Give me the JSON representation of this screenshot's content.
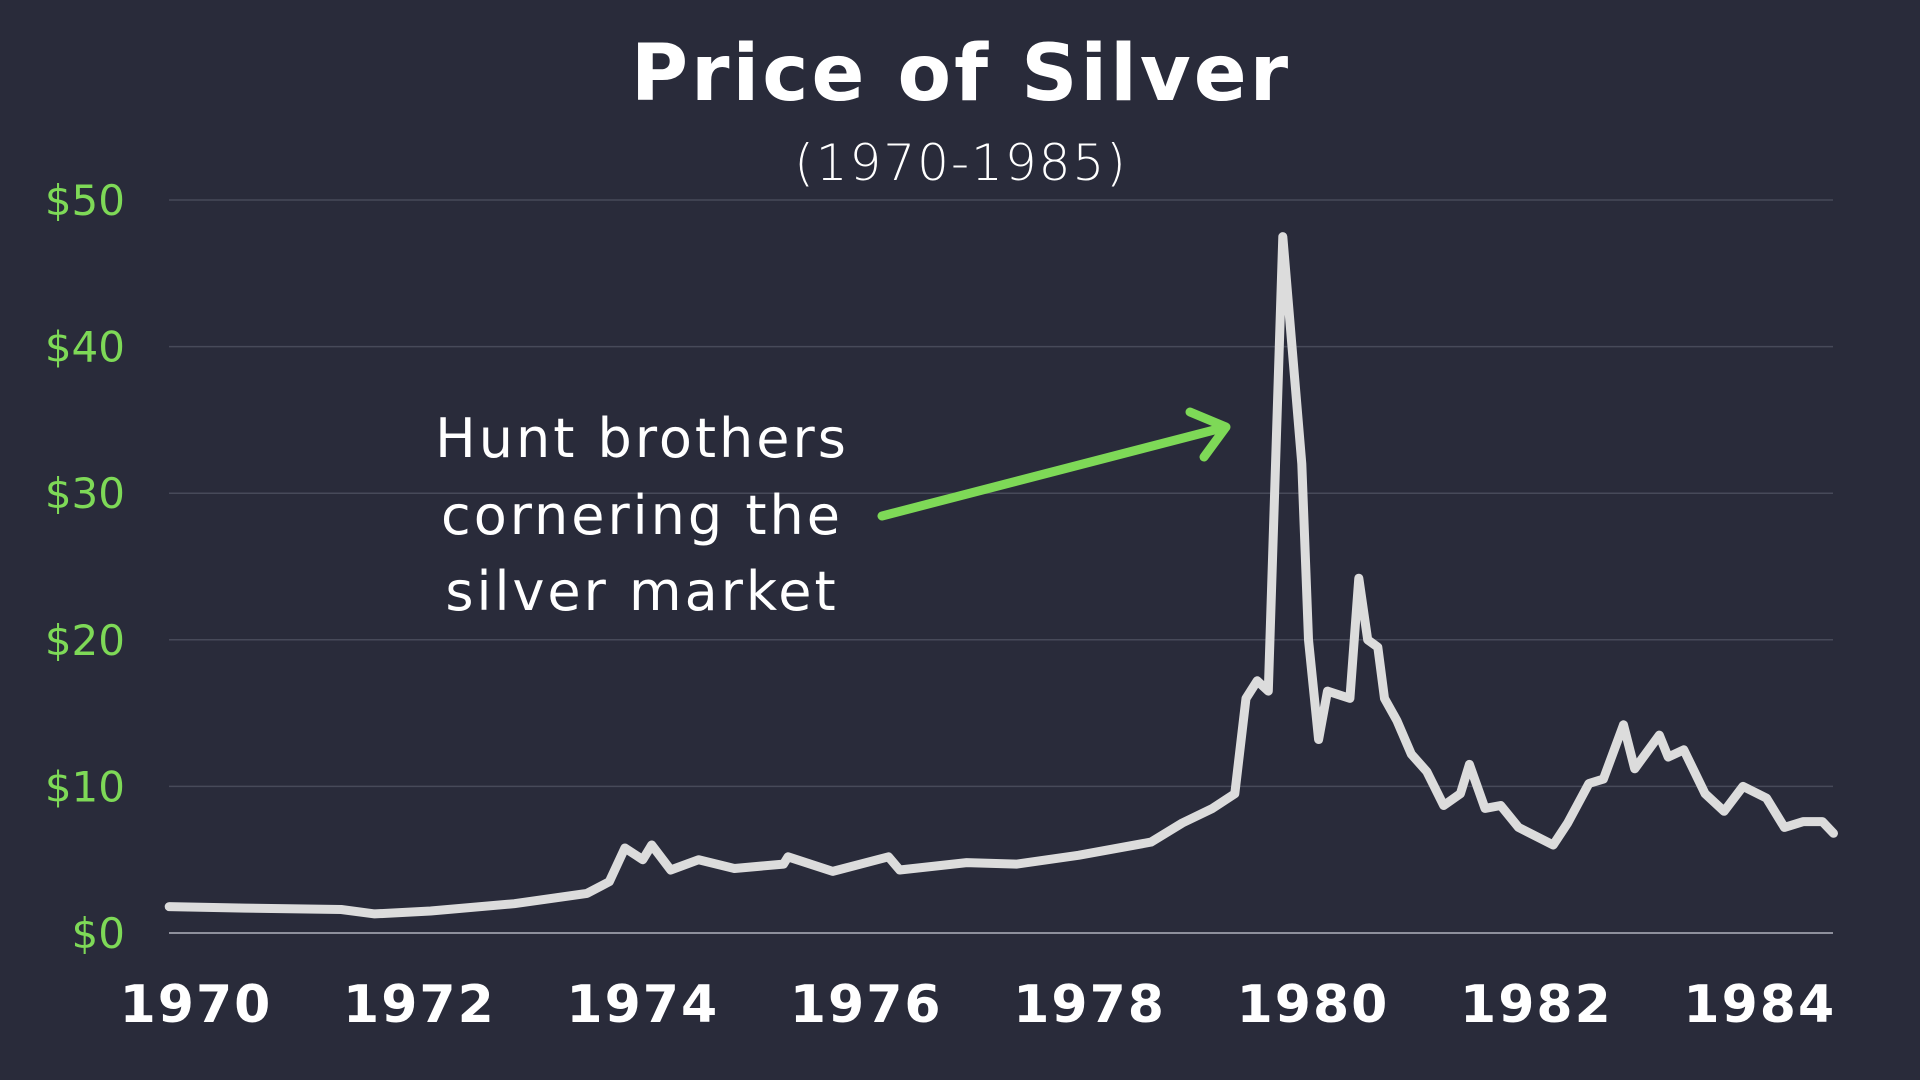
{
  "chart_data": {
    "type": "line",
    "title": "Price of Silver",
    "subtitle": "(1970-1985)",
    "xlabel": "",
    "ylabel": "",
    "xlim": [
      1969.76,
      1984.9
    ],
    "ylim": [
      0,
      50
    ],
    "grid": true,
    "y_ticks": [
      0,
      10,
      20,
      30,
      40,
      50
    ],
    "y_tick_labels": [
      "$0",
      "$10",
      "$20",
      "$30",
      "$40",
      "$50"
    ],
    "x_ticks": [
      1970,
      1972,
      1974,
      1976,
      1978,
      1980,
      1982,
      1984
    ],
    "x_tick_labels": [
      "1970",
      "1972",
      "1974",
      "1976",
      "1978",
      "1980",
      "1982",
      "1984"
    ],
    "series": [
      {
        "color": "#dcdcdc",
        "x": [
          1969.76,
          1970.44,
          1971.3,
          1971.6,
          1972.1,
          1972.85,
          1973.5,
          1973.7,
          1973.84,
          1974.0,
          1974.08,
          1974.25,
          1974.5,
          1974.82,
          1975.26,
          1975.3,
          1975.7,
          1976.2,
          1976.3,
          1976.9,
          1977.35,
          1977.9,
          1978.55,
          1978.83,
          1979.1,
          1979.3,
          1979.4,
          1979.5,
          1979.6,
          1979.73,
          1979.9,
          1979.96,
          1980.05,
          1980.13,
          1980.33,
          1980.41,
          1980.49,
          1980.58,
          1980.64,
          1980.75,
          1980.88,
          1981.02,
          1981.17,
          1981.32,
          1981.4,
          1981.54,
          1981.68,
          1981.84,
          1982.15,
          1982.28,
          1982.47,
          1982.6,
          1982.78,
          1982.88,
          1983.1,
          1983.18,
          1983.32,
          1983.51,
          1983.68,
          1983.85,
          1984.06,
          1984.22,
          1984.39,
          1984.56,
          1984.66
        ],
        "y": [
          1.8,
          1.7,
          1.6,
          1.3,
          1.5,
          2.0,
          2.7,
          3.5,
          5.8,
          5.0,
          6.0,
          4.3,
          5.0,
          4.4,
          4.7,
          5.2,
          4.2,
          5.2,
          4.3,
          4.8,
          4.7,
          5.3,
          6.2,
          7.5,
          8.5,
          9.5,
          16.0,
          17.2,
          16.5,
          47.5,
          32,
          20,
          13.2,
          16.5,
          16.0,
          24.2,
          20,
          19.5,
          16.0,
          14.5,
          12.2,
          11.0,
          8.7,
          9.5,
          11.5,
          8.5,
          8.7,
          7.2,
          6.0,
          7.5,
          10.2,
          10.5,
          14.2,
          11.2,
          13.5,
          12.0,
          12.5,
          9.5,
          8.3,
          10.0,
          9.2,
          7.2,
          7.6,
          7.6,
          6.8
        ]
      }
    ],
    "annotation": {
      "lines": [
        "Hunt brothers",
        "cornering the",
        "silver market"
      ],
      "arrow_color": "#7ed957"
    }
  },
  "colors": {
    "background": "#292b3a",
    "accent": "#7ed957",
    "line": "#dcdcdc",
    "grid": "#4a4c5a"
  }
}
